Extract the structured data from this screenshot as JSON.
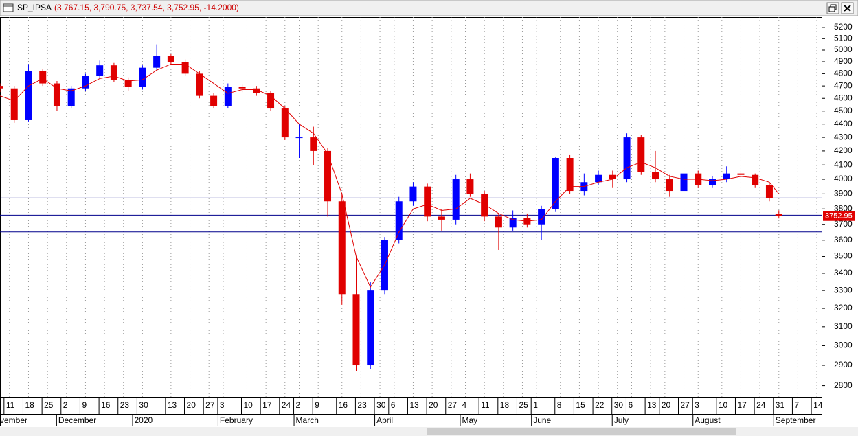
{
  "chart_data": {
    "type": "candlestick",
    "title": "SP_IPSA",
    "subtitle": "(3,767.15, 3,790.75, 3,737.54, 3,752.95, -14.2000)",
    "x": [
      0,
      3,
      6,
      9,
      12,
      15,
      18,
      21,
      24,
      27,
      30,
      33,
      36,
      39,
      42,
      45,
      48,
      51,
      54,
      57,
      60,
      63,
      66,
      69,
      72,
      75,
      78,
      81,
      84,
      87,
      90,
      93,
      96,
      99,
      102,
      105,
      108,
      111,
      114,
      117,
      120,
      123,
      126,
      129,
      132,
      135,
      138,
      141,
      144,
      147,
      150,
      153,
      156,
      159,
      162,
      164
    ],
    "open": [
      4700,
      4680,
      4430,
      4820,
      4720,
      4540,
      4680,
      4780,
      4870,
      4750,
      4690,
      4850,
      4950,
      4900,
      4800,
      4620,
      4540,
      4690,
      4680,
      4640,
      4520,
      4300,
      4300,
      4200,
      3850,
      3280,
      2900,
      3300,
      3600,
      3850,
      3950,
      3750,
      3730,
      4000,
      3900,
      3750,
      3680,
      3740,
      3700,
      3800,
      4150,
      3920,
      3980,
      4030,
      4000,
      4300,
      4050,
      4000,
      3920,
      4040,
      3960,
      4000,
      4040,
      4030,
      3960,
      3767.15
    ],
    "high": [
      4720,
      4700,
      4880,
      4840,
      4740,
      4700,
      4800,
      4910,
      4890,
      4770,
      4870,
      5050,
      4970,
      4920,
      4820,
      4640,
      4720,
      4710,
      4700,
      4660,
      4540,
      4400,
      4380,
      4220,
      3900,
      3500,
      3350,
      3620,
      3880,
      3980,
      3970,
      3800,
      4030,
      4040,
      3920,
      3770,
      3790,
      3770,
      3820,
      4160,
      4170,
      4040,
      4060,
      4060,
      4330,
      4320,
      4200,
      4030,
      4100,
      4060,
      4020,
      4090,
      4060,
      4040,
      3980,
      3790.75
    ],
    "low": [
      4650,
      4410,
      4420,
      4700,
      4500,
      4520,
      4660,
      4760,
      4730,
      4660,
      4670,
      4830,
      4880,
      4780,
      4600,
      4520,
      4520,
      4650,
      4620,
      4500,
      4280,
      4150,
      4100,
      3750,
      3220,
      2870,
      2880,
      3280,
      3580,
      3820,
      3720,
      3660,
      3700,
      3880,
      3720,
      3540,
      3660,
      3680,
      3600,
      3780,
      3900,
      3890,
      3960,
      3940,
      3980,
      4030,
      3980,
      3880,
      3900,
      3940,
      3940,
      3980,
      4010,
      3940,
      3850,
      3737.54
    ],
    "close": [
      4680,
      4430,
      4820,
      4720,
      4540,
      4680,
      4780,
      4870,
      4750,
      4690,
      4850,
      4950,
      4900,
      4800,
      4620,
      4540,
      4690,
      4680,
      4640,
      4520,
      4300,
      4300,
      4200,
      3850,
      3280,
      2900,
      3300,
      3600,
      3850,
      3950,
      3750,
      3730,
      4000,
      3900,
      3750,
      3680,
      3740,
      3700,
      3800,
      4150,
      3920,
      3980,
      4030,
      4000,
      4300,
      4050,
      4000,
      3920,
      4040,
      3960,
      4000,
      4040,
      4030,
      3960,
      3870,
      3752.95
    ],
    "up_color": "#0000ff",
    "down_color": "#e00000",
    "ma_values": [
      4620,
      4580,
      4700,
      4760,
      4680,
      4660,
      4700,
      4760,
      4780,
      4740,
      4750,
      4830,
      4880,
      4880,
      4800,
      4720,
      4640,
      4670,
      4670,
      4620,
      4520,
      4400,
      4330,
      4180,
      3900,
      3500,
      3320,
      3450,
      3650,
      3800,
      3830,
      3790,
      3800,
      3870,
      3830,
      3770,
      3730,
      3720,
      3730,
      3850,
      3950,
      3950,
      3980,
      4000,
      4080,
      4120,
      4080,
      4020,
      4000,
      4000,
      3990,
      4000,
      4020,
      4010,
      3980,
      3900
    ],
    "ma_color": "#e00000",
    "hlines": [
      4036,
      3872,
      3759,
      3652
    ],
    "hline_color": "#00008b",
    "log_scale": true,
    "ylim": [
      2746,
      5293
    ],
    "yticks": [
      2800,
      2900,
      3000,
      3100,
      3200,
      3300,
      3400,
      3500,
      3600,
      3700,
      3800,
      3900,
      4000,
      4100,
      4200,
      4300,
      4400,
      4500,
      4600,
      4700,
      4800,
      4900,
      5000,
      5100,
      5200
    ],
    "xlim": [
      0,
      173
    ],
    "xticks": [
      {
        "value": 2,
        "label": "11"
      },
      {
        "value": 6,
        "label": "18"
      },
      {
        "value": 10,
        "label": "25"
      },
      {
        "value": 14,
        "label": "2"
      },
      {
        "value": 18,
        "label": "9"
      },
      {
        "value": 22,
        "label": "16"
      },
      {
        "value": 26,
        "label": "23"
      },
      {
        "value": 30,
        "label": "30"
      },
      {
        "value": 36,
        "label": "13"
      },
      {
        "value": 40,
        "label": "20"
      },
      {
        "value": 44,
        "label": "27"
      },
      {
        "value": 47,
        "label": "3"
      },
      {
        "value": 52,
        "label": "10"
      },
      {
        "value": 56,
        "label": "17"
      },
      {
        "value": 60,
        "label": "24"
      },
      {
        "value": 63,
        "label": "2"
      },
      {
        "value": 67,
        "label": "9"
      },
      {
        "value": 72,
        "label": "16"
      },
      {
        "value": 76,
        "label": "23"
      },
      {
        "value": 80,
        "label": "30"
      },
      {
        "value": 83,
        "label": "6"
      },
      {
        "value": 87,
        "label": "13"
      },
      {
        "value": 91,
        "label": "20"
      },
      {
        "value": 95,
        "label": "27"
      },
      {
        "value": 98,
        "label": "4"
      },
      {
        "value": 102,
        "label": "11"
      },
      {
        "value": 106,
        "label": "18"
      },
      {
        "value": 110,
        "label": "25"
      },
      {
        "value": 113,
        "label": "1"
      },
      {
        "value": 118,
        "label": "8"
      },
      {
        "value": 122,
        "label": "15"
      },
      {
        "value": 126,
        "label": "22"
      },
      {
        "value": 130,
        "label": "30"
      },
      {
        "value": 133,
        "label": "6"
      },
      {
        "value": 137,
        "label": "13"
      },
      {
        "value": 140,
        "label": "20"
      },
      {
        "value": 144,
        "label": "27"
      },
      {
        "value": 147,
        "label": "3"
      },
      {
        "value": 152,
        "label": "10"
      },
      {
        "value": 156,
        "label": "17"
      },
      {
        "value": 160,
        "label": "24"
      },
      {
        "value": 164,
        "label": "31"
      },
      {
        "value": 168,
        "label": "7"
      },
      {
        "value": 172,
        "label": "14"
      }
    ],
    "month_ticks": [
      {
        "value": 0,
        "label": "vember"
      },
      {
        "value": 13,
        "label": "December"
      },
      {
        "value": 29,
        "label": "2020"
      },
      {
        "value": 47,
        "label": "February"
      },
      {
        "value": 63,
        "label": "March"
      },
      {
        "value": 80,
        "label": "April"
      },
      {
        "value": 98,
        "label": "May"
      },
      {
        "value": 113,
        "label": "June"
      },
      {
        "value": 130,
        "label": "July"
      },
      {
        "value": 147,
        "label": "August"
      },
      {
        "value": 164,
        "label": "September"
      }
    ],
    "grid": "x"
  }
}
